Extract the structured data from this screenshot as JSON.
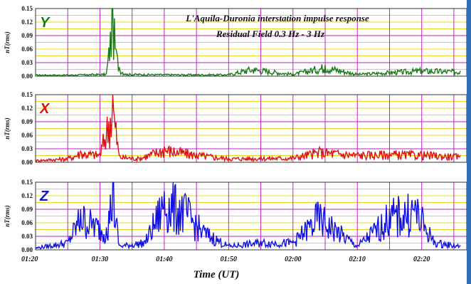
{
  "title_line1": "L'Aquila-Duronia interstation impulse response",
  "title_line2": "Residual Field 0.3 Hz - 3 Hz",
  "chart_data": {
    "type": "line",
    "xlabel": "Time (UT)",
    "x_ticks": [
      "01:20",
      "01:30",
      "01:40",
      "01:50",
      "02:00",
      "02:10",
      "02:20"
    ],
    "xlim": [
      "01:20",
      "02:27"
    ],
    "ylim": [
      0,
      0.15
    ],
    "y_ticks": [
      "0.00",
      "0.03",
      "0.06",
      "0.09",
      "0.12",
      "0.15"
    ],
    "grid": true,
    "panels": [
      {
        "component": "Y",
        "ylabel": "nT(rms)",
        "color": "#1a7a1a",
        "series": [
          {
            "t": "01:20",
            "v": 0.003
          },
          {
            "t": "01:25",
            "v": 0.003
          },
          {
            "t": "01:28",
            "v": 0.004
          },
          {
            "t": "01:31",
            "v": 0.005
          },
          {
            "t": "01:32",
            "v": 0.15
          },
          {
            "t": "01:32.5",
            "v": 0.06
          },
          {
            "t": "01:33",
            "v": 0.02
          },
          {
            "t": "01:34",
            "v": 0.005
          },
          {
            "t": "01:40",
            "v": 0.004
          },
          {
            "t": "01:50",
            "v": 0.004
          },
          {
            "t": "01:53",
            "v": 0.017
          },
          {
            "t": "01:54",
            "v": 0.018
          },
          {
            "t": "02:00",
            "v": 0.005
          },
          {
            "t": "02:05",
            "v": 0.025
          },
          {
            "t": "02:10",
            "v": 0.005
          },
          {
            "t": "02:20",
            "v": 0.015
          },
          {
            "t": "02:26",
            "v": 0.012
          }
        ]
      },
      {
        "component": "X",
        "ylabel": "nT(rms)",
        "color": "#e01010",
        "series": [
          {
            "t": "01:20",
            "v": 0.005
          },
          {
            "t": "01:25",
            "v": 0.01
          },
          {
            "t": "01:27",
            "v": 0.025
          },
          {
            "t": "01:30",
            "v": 0.02
          },
          {
            "t": "01:32",
            "v": 0.15
          },
          {
            "t": "01:33",
            "v": 0.015
          },
          {
            "t": "01:36",
            "v": 0.01
          },
          {
            "t": "01:40",
            "v": 0.035
          },
          {
            "t": "01:45",
            "v": 0.02
          },
          {
            "t": "01:50",
            "v": 0.01
          },
          {
            "t": "02:00",
            "v": 0.012
          },
          {
            "t": "02:04",
            "v": 0.028
          },
          {
            "t": "02:10",
            "v": 0.02
          },
          {
            "t": "02:15",
            "v": 0.022
          },
          {
            "t": "02:20",
            "v": 0.02
          },
          {
            "t": "02:26",
            "v": 0.015
          }
        ]
      },
      {
        "component": "Z",
        "ylabel": "nT(rms)",
        "color": "#1010e0",
        "series": [
          {
            "t": "01:20",
            "v": 0.005
          },
          {
            "t": "01:25",
            "v": 0.02
          },
          {
            "t": "01:27",
            "v": 0.09
          },
          {
            "t": "01:29",
            "v": 0.07
          },
          {
            "t": "01:31",
            "v": 0.05
          },
          {
            "t": "01:32",
            "v": 0.15
          },
          {
            "t": "01:33",
            "v": 0.01
          },
          {
            "t": "01:37",
            "v": 0.02
          },
          {
            "t": "01:40",
            "v": 0.13
          },
          {
            "t": "01:43",
            "v": 0.11
          },
          {
            "t": "01:46",
            "v": 0.05
          },
          {
            "t": "01:50",
            "v": 0.01
          },
          {
            "t": "01:55",
            "v": 0.02
          },
          {
            "t": "02:00",
            "v": 0.02
          },
          {
            "t": "02:04",
            "v": 0.09
          },
          {
            "t": "02:07",
            "v": 0.05
          },
          {
            "t": "02:10",
            "v": 0.01
          },
          {
            "t": "02:15",
            "v": 0.09
          },
          {
            "t": "02:19",
            "v": 0.11
          },
          {
            "t": "02:22",
            "v": 0.02
          },
          {
            "t": "02:26",
            "v": 0.01
          }
        ]
      }
    ]
  }
}
